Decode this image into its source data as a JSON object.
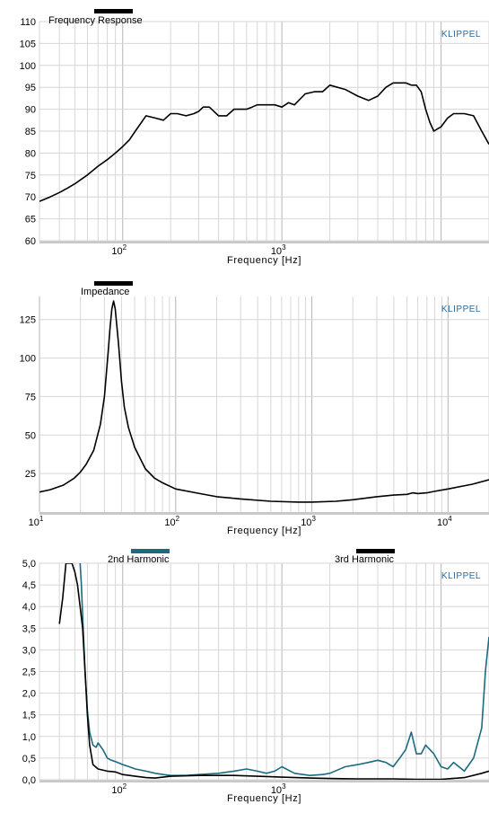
{
  "chart_data": [
    {
      "type": "line",
      "title": "Frequency Response",
      "brand": "KLIPPEL",
      "xlabel": "Frequency  [Hz]",
      "xscale": "log",
      "xlim": [
        30,
        20000
      ],
      "xticks": [
        {
          "value": 100,
          "base": "10",
          "exp": "2"
        },
        {
          "value": 1000,
          "base": "10",
          "exp": "3"
        }
      ],
      "ylim": [
        60,
        110
      ],
      "yticks": [
        "60",
        "65",
        "70",
        "75",
        "80",
        "85",
        "90",
        "95",
        "100",
        "105",
        "110"
      ],
      "grid": true,
      "legend": [
        {
          "label": "Frequency Response",
          "color": "#000000"
        }
      ],
      "series": [
        {
          "color": "#000000",
          "x": [
            30,
            35,
            40,
            45,
            50,
            60,
            70,
            80,
            90,
            100,
            110,
            120,
            140,
            160,
            180,
            200,
            220,
            250,
            280,
            300,
            320,
            350,
            400,
            450,
            500,
            550,
            600,
            650,
            700,
            800,
            900,
            1000,
            1100,
            1200,
            1400,
            1600,
            1800,
            2000,
            2500,
            3000,
            3500,
            4000,
            4500,
            5000,
            5500,
            6000,
            6500,
            7000,
            7500,
            8000,
            8500,
            9000,
            10000,
            11000,
            12000,
            14000,
            16000,
            18000,
            20000
          ],
          "y": [
            69,
            70,
            71,
            72,
            73,
            75,
            77,
            78.5,
            80,
            81.5,
            83,
            85,
            88.5,
            88,
            87.5,
            89,
            89,
            88.5,
            89,
            89.5,
            90.5,
            90.5,
            88.5,
            88.5,
            90,
            90,
            90,
            90.5,
            91,
            91,
            91,
            90.5,
            91.5,
            91,
            93.5,
            94,
            94,
            95.5,
            94.5,
            93,
            92,
            93,
            95,
            96,
            96,
            96,
            95.5,
            95.5,
            94,
            90,
            87,
            85,
            86,
            88,
            89,
            89,
            88.5,
            85,
            82
          ]
        }
      ]
    },
    {
      "type": "line",
      "title": "Impedance",
      "brand": "KLIPPEL",
      "xlabel": "Frequency  [Hz]",
      "xscale": "log",
      "xlim": [
        10,
        20000
      ],
      "xticks": [
        {
          "value": 10,
          "base": "10",
          "exp": "1"
        },
        {
          "value": 100,
          "base": "10",
          "exp": "2"
        },
        {
          "value": 1000,
          "base": "10",
          "exp": "3"
        },
        {
          "value": 10000,
          "base": "10",
          "exp": "4"
        }
      ],
      "ylim": [
        0,
        140
      ],
      "yticks": [
        "25",
        "50",
        "75",
        "100",
        "125"
      ],
      "grid": true,
      "legend": [
        {
          "label": "Impedance",
          "color": "#000000"
        }
      ],
      "series": [
        {
          "color": "#000000",
          "x": [
            10,
            12,
            15,
            18,
            20,
            22,
            25,
            28,
            30,
            32,
            33,
            34,
            35,
            36,
            38,
            40,
            42,
            45,
            50,
            60,
            70,
            80,
            100,
            150,
            200,
            300,
            500,
            800,
            1000,
            1500,
            2000,
            3000,
            4000,
            5000,
            5500,
            6000,
            7000,
            8000,
            10000,
            15000,
            20000
          ],
          "y": [
            13,
            14.5,
            17.5,
            22,
            26,
            31,
            40,
            57,
            75,
            105,
            120,
            132,
            137,
            132,
            110,
            85,
            68,
            55,
            42,
            28,
            22,
            19,
            15,
            12,
            10,
            8.5,
            7,
            6.5,
            6.5,
            7,
            8,
            10,
            11,
            11.5,
            12.5,
            12,
            12.5,
            13.5,
            15,
            18,
            21
          ]
        }
      ]
    },
    {
      "type": "line",
      "title": "",
      "brand": "KLIPPEL",
      "xlabel": "Frequency  [Hz]",
      "xscale": "log",
      "xlim": [
        30,
        20000
      ],
      "xticks": [
        {
          "value": 100,
          "base": "10",
          "exp": "2"
        },
        {
          "value": 1000,
          "base": "10",
          "exp": "3"
        }
      ],
      "ylim": [
        0,
        5
      ],
      "yticks": [
        "0,0",
        "0,5",
        "1,0",
        "1,5",
        "2,0",
        "2,5",
        "3,0",
        "3,5",
        "4,0",
        "4,5",
        "5,0"
      ],
      "grid": true,
      "legend": [
        {
          "label": "2nd Harmonic",
          "color": "#1a6b80"
        },
        {
          "label": "3rd Harmonic",
          "color": "#000000"
        }
      ],
      "series": [
        {
          "name": "2nd Harmonic",
          "color": "#1a6b80",
          "x": [
            54,
            55,
            56,
            58,
            60,
            62,
            65,
            68,
            70,
            75,
            80,
            85,
            90,
            100,
            110,
            120,
            140,
            160,
            180,
            200,
            250,
            300,
            400,
            500,
            600,
            700,
            800,
            900,
            1000,
            1200,
            1500,
            1800,
            2000,
            2500,
            3000,
            3500,
            4000,
            4500,
            5000,
            5500,
            6000,
            6500,
            7000,
            7500,
            8000,
            9000,
            10000,
            11000,
            12000,
            14000,
            16000,
            18000,
            19000,
            20000
          ],
          "y": [
            5,
            4.5,
            3.8,
            2.5,
            1.6,
            1.1,
            0.8,
            0.75,
            0.85,
            0.7,
            0.5,
            0.45,
            0.42,
            0.35,
            0.3,
            0.25,
            0.2,
            0.15,
            0.12,
            0.1,
            0.1,
            0.12,
            0.15,
            0.2,
            0.25,
            0.2,
            0.15,
            0.2,
            0.3,
            0.15,
            0.1,
            0.12,
            0.15,
            0.3,
            0.35,
            0.4,
            0.45,
            0.4,
            0.3,
            0.5,
            0.7,
            1.1,
            0.6,
            0.6,
            0.8,
            0.6,
            0.3,
            0.25,
            0.4,
            0.2,
            0.5,
            1.2,
            2.5,
            3.3
          ]
        },
        {
          "name": "3rd Harmonic",
          "color": "#000000",
          "x": [
            40,
            42,
            44,
            46,
            48,
            50,
            52,
            54,
            56,
            58,
            60,
            62,
            65,
            70,
            80,
            90,
            100,
            120,
            140,
            160,
            200,
            300,
            500,
            700,
            1000,
            1500,
            2000,
            3000,
            5000,
            7000,
            10000,
            14000,
            18000,
            20000
          ],
          "y": [
            3.6,
            4.2,
            5,
            5,
            5,
            4.8,
            4.5,
            4.0,
            3.5,
            2.5,
            1.5,
            0.8,
            0.35,
            0.25,
            0.2,
            0.18,
            0.12,
            0.08,
            0.05,
            0.04,
            0.08,
            0.1,
            0.1,
            0.08,
            0.06,
            0.04,
            0.03,
            0.02,
            0.02,
            0.01,
            0.01,
            0.05,
            0.15,
            0.2
          ]
        }
      ]
    }
  ]
}
